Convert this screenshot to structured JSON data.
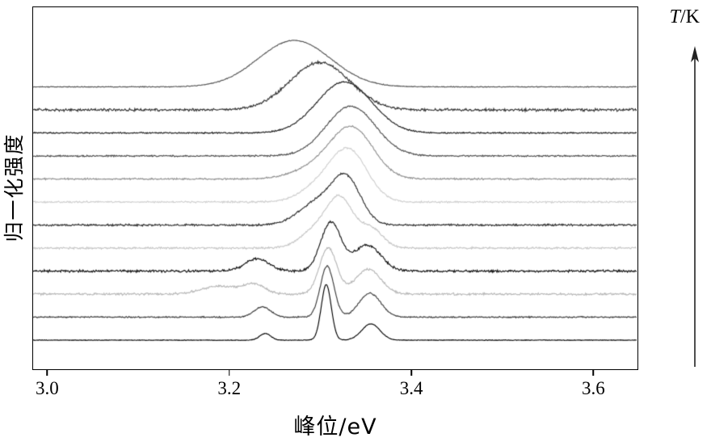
{
  "chart_data": {
    "type": "line",
    "variant": "waterfall-stacked-spectra",
    "title": "",
    "xlabel": "峰位/eV",
    "ylabel": "归一化强度",
    "right_label_symbol": "T",
    "right_label_unit": "/K",
    "x_unit": "eV",
    "x_range": [
      2.985,
      3.648
    ],
    "x_ticks": [
      {
        "value": 3.0,
        "label": "3.0"
      },
      {
        "value": 3.2,
        "label": "3.2"
      },
      {
        "value": 3.4,
        "label": "3.4"
      },
      {
        "value": 3.6,
        "label": "3.6"
      }
    ],
    "y_axis": "no tick labels; normalized intensity, traces vertically offset",
    "legend_position": "none",
    "grid": false,
    "temperature_direction": "temperature T/K increases from bottom trace to top trace (upward arrow at right edge)",
    "series_order": "bottom (lowest T, sharp peaks ~3.31 eV) to top (highest T, broad peak ~3.27 eV)",
    "series": [
      {
        "name": "trace-01",
        "temperature_rank": 1,
        "color": "#000000",
        "offset": 0,
        "noise": 0.015,
        "peaks": [
          {
            "center": 3.24,
            "height": 0.3,
            "width": 0.006
          },
          {
            "center": 3.307,
            "height": 2.45,
            "width": 0.0055
          },
          {
            "center": 3.356,
            "height": 0.72,
            "width": 0.01
          }
        ]
      },
      {
        "name": "trace-02",
        "temperature_rank": 2,
        "color": "#3c3c3c",
        "offset": 1,
        "noise": 0.035,
        "peaks": [
          {
            "center": 3.237,
            "height": 0.45,
            "width": 0.009
          },
          {
            "center": 3.308,
            "height": 2.25,
            "width": 0.0075
          },
          {
            "center": 3.355,
            "height": 1.05,
            "width": 0.012
          }
        ]
      },
      {
        "name": "trace-03",
        "temperature_rank": 3,
        "color": "#b7b7b7",
        "offset": 2,
        "noise": 0.055,
        "peaks": [
          {
            "center": 3.19,
            "height": 0.35,
            "width": 0.02
          },
          {
            "center": 3.228,
            "height": 0.4,
            "width": 0.012
          },
          {
            "center": 3.309,
            "height": 2.05,
            "width": 0.0095
          },
          {
            "center": 3.353,
            "height": 1.1,
            "width": 0.014
          }
        ]
      },
      {
        "name": "trace-04",
        "temperature_rank": 4,
        "color": "#121212",
        "offset": 3,
        "noise": 0.06,
        "peaks": [
          {
            "center": 3.231,
            "height": 0.55,
            "width": 0.013
          },
          {
            "center": 3.312,
            "height": 2.15,
            "width": 0.011
          },
          {
            "center": 3.352,
            "height": 1.15,
            "width": 0.015
          }
        ]
      },
      {
        "name": "trace-05",
        "temperature_rank": 5,
        "color": "#c6c6c6",
        "offset": 4,
        "noise": 0.05,
        "peaks": [
          {
            "center": 3.298,
            "height": 0.85,
            "width": 0.018
          },
          {
            "center": 3.323,
            "height": 1.95,
            "width": 0.014
          },
          {
            "center": 3.356,
            "height": 0.85,
            "width": 0.013
          }
        ]
      },
      {
        "name": "trace-06",
        "temperature_rank": 6,
        "color": "#2d2d2d",
        "offset": 5,
        "noise": 0.05,
        "peaks": [
          {
            "center": 3.296,
            "height": 0.95,
            "width": 0.02
          },
          {
            "center": 3.329,
            "height": 2.0,
            "width": 0.016
          }
        ]
      },
      {
        "name": "trace-07",
        "temperature_rank": 7,
        "color": "#cfcfcf",
        "offset": 6,
        "noise": 0.045,
        "peaks": [
          {
            "center": 3.302,
            "height": 0.7,
            "width": 0.022
          },
          {
            "center": 3.333,
            "height": 2.1,
            "width": 0.02
          }
        ]
      },
      {
        "name": "trace-08",
        "temperature_rank": 8,
        "color": "#909090",
        "offset": 7,
        "noise": 0.04,
        "peaks": [
          {
            "center": 3.298,
            "height": 0.5,
            "width": 0.026
          },
          {
            "center": 3.336,
            "height": 2.15,
            "width": 0.023
          }
        ]
      },
      {
        "name": "trace-09",
        "temperature_rank": 9,
        "color": "#4e4e4e",
        "offset": 8,
        "noise": 0.04,
        "peaks": [
          {
            "center": 3.334,
            "height": 2.2,
            "width": 0.027
          }
        ]
      },
      {
        "name": "trace-10",
        "temperature_rank": 10,
        "color": "#1e1e1e",
        "offset": 9,
        "noise": 0.035,
        "peaks": [
          {
            "center": 3.327,
            "height": 2.25,
            "width": 0.03
          }
        ]
      },
      {
        "name": "trace-11",
        "temperature_rank": 11,
        "color": "#343434",
        "offset": 10,
        "noise": 0.07,
        "peaks": [
          {
            "center": 3.3,
            "height": 2.1,
            "width": 0.033
          }
        ]
      },
      {
        "name": "trace-12",
        "temperature_rank": 12,
        "color": "#565656",
        "offset": 11,
        "noise": 0.02,
        "peaks": [
          {
            "center": 3.272,
            "height": 2.05,
            "width": 0.04
          }
        ]
      }
    ]
  }
}
